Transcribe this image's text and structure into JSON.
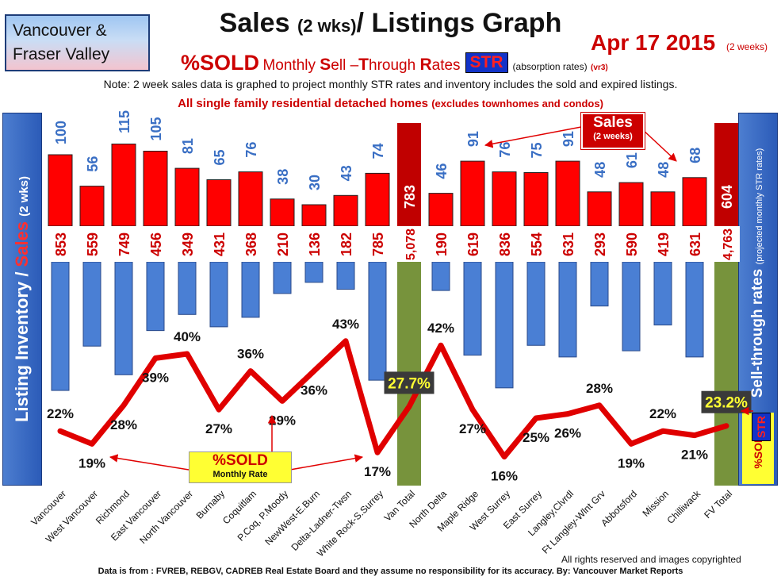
{
  "region": {
    "line1": "Vancouver &",
    "line2": "Fraser Valley"
  },
  "header": {
    "title_main": "Sales",
    "title_paren": "(2 wks)",
    "title_rest": "/ Listings Graph",
    "date": "Apr 17 2015",
    "date_note": "(2 weeks)",
    "sub_sold": "%SOLD",
    "sub_monthly": "Monthly",
    "sub_s": "S",
    "sub_ell": "ell ",
    "sub_dash": "–",
    "sub_t": "T",
    "sub_hrough": "hrough ",
    "sub_r": "R",
    "sub_ates": "ates",
    "sub_str": "STR",
    "sub_absorption": "(absorption rates)",
    "sub_version": "(vr3)",
    "note": "Note: 2 week sales data is graphed to project monthly STR rates and inventory includes the sold and expired listings.",
    "desc_main": "All single family residential detached homes",
    "desc_paren": "(excludes townhomes and condos)"
  },
  "left_axis": {
    "part1": "Listing Inventory / ",
    "part2": "Sales",
    "part3": "(2 wks)"
  },
  "right_axis": {
    "main": "Sell-through rates",
    "sub": "(projected monthly STR rates)"
  },
  "callouts": {
    "sales_big": "Sales",
    "sales_small": "(2 weeks)",
    "sold_big": "%SOLD",
    "sold_small": "Monthly Rate",
    "str_mini": "STR",
    "sold_mini": "%SOLD"
  },
  "footer": {
    "rights": "All rights reserved and  images copyrighted",
    "source": "Data is from : FVREB, REBGV, CADREB Real Estate Board and they assume no responsibility for its accuracy. By: Vancouver Market Reports"
  },
  "colors": {
    "sales": "#ff0000",
    "listings": "#4a7fd4",
    "total_sales": "#c00000",
    "total_listings": "#77933c",
    "line": "#e00000"
  },
  "chart_data": {
    "type": "bar",
    "categories": [
      "Vancouver",
      "West Vancouver",
      "Richmond",
      "East Vancouver",
      "North Vancouver",
      "Burnaby",
      "Coquitlam",
      "P.Coq, P.Moody",
      "NewWest-E.Burn",
      "Delta-Ladner-Twsn",
      "White Rock-S.Surrey",
      "Van Total",
      "North Delta",
      "Maple Ridge",
      "West Surrey",
      "East Surrey",
      "Langley,Clvrdl",
      "Ft Langley-Wlnt Grv",
      "Abbotsford",
      "Mission",
      "Chilliwack",
      "FV Total"
    ],
    "series": [
      {
        "name": "Sales",
        "values": [
          100,
          56,
          115,
          105,
          81,
          65,
          76,
          38,
          30,
          43,
          74,
          783,
          46,
          91,
          76,
          75,
          91,
          48,
          61,
          48,
          68,
          604
        ],
        "labels": [
          "100",
          "56",
          "115",
          "105",
          "81",
          "65",
          "76",
          "38",
          "30",
          "43",
          "74",
          "783",
          "46",
          "91",
          "76",
          "75",
          "91",
          "48",
          "61",
          "48",
          "68",
          "604"
        ]
      },
      {
        "name": "Listing Inventory",
        "values": [
          853,
          559,
          749,
          456,
          349,
          431,
          368,
          210,
          136,
          182,
          785,
          5078,
          190,
          619,
          836,
          554,
          631,
          293,
          590,
          419,
          631,
          4763
        ],
        "labels": [
          "853",
          "559",
          "749",
          "456",
          "349",
          "431",
          "368",
          "210",
          "136",
          "182",
          "785",
          "5,078",
          "190",
          "619",
          "836",
          "554",
          "631",
          "293",
          "590",
          "419",
          "631",
          "4,763"
        ]
      },
      {
        "name": "%SOLD",
        "type": "line",
        "values": [
          22,
          19,
          28,
          39,
          40,
          27,
          36,
          29,
          36,
          43,
          17,
          27.7,
          42,
          27,
          16,
          25,
          26,
          28,
          19,
          22,
          21,
          23.2
        ],
        "labels": [
          "22%",
          "19%",
          "28%",
          "39%",
          "40%",
          "27%",
          "36%",
          "29%",
          "36%",
          "43%",
          "17%",
          "27.7%",
          "42%",
          "27%",
          "16%",
          "25%",
          "26%",
          "28%",
          "19%",
          "22%",
          "21%",
          "23.2%"
        ]
      }
    ],
    "totals_index": [
      11,
      21
    ]
  }
}
